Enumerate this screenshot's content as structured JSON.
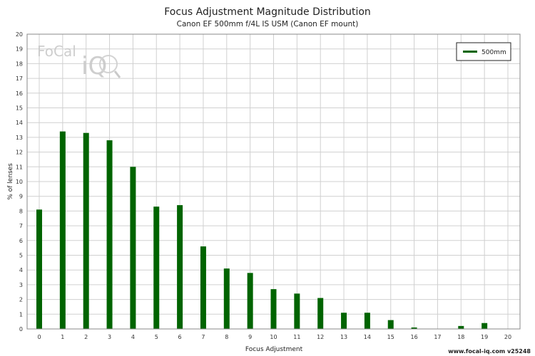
{
  "chart_data": {
    "type": "bar",
    "title": "Focus Adjustment Magnitude Distribution",
    "subtitle": "Canon EF 500mm f/4L IS USM (Canon EF mount)",
    "xlabel": "Focus Adjustment",
    "ylabel": "% of lenses",
    "xlim": [
      0,
      20
    ],
    "ylim": [
      0,
      20
    ],
    "x_ticks": [
      0,
      1,
      2,
      3,
      4,
      5,
      6,
      7,
      8,
      9,
      10,
      11,
      12,
      13,
      14,
      15,
      16,
      17,
      18,
      19,
      20
    ],
    "y_ticks": [
      0,
      1,
      2,
      3,
      4,
      5,
      6,
      7,
      8,
      9,
      10,
      11,
      12,
      13,
      14,
      15,
      16,
      17,
      18,
      19,
      20
    ],
    "grid": true,
    "legend_position": "top-right",
    "series": [
      {
        "name": "500mm",
        "color": "#006400",
        "x": [
          0,
          1,
          2,
          3,
          4,
          5,
          6,
          7,
          8,
          9,
          10,
          11,
          12,
          13,
          14,
          15,
          16,
          17,
          18,
          19,
          20
        ],
        "values": [
          8.1,
          13.4,
          13.3,
          12.8,
          11.0,
          8.3,
          8.4,
          5.6,
          4.1,
          3.8,
          2.7,
          2.4,
          2.1,
          1.1,
          1.1,
          0.6,
          0.1,
          0,
          0.2,
          0.4,
          0
        ]
      }
    ]
  },
  "footer": "www.focal-iq.com v25248",
  "watermark": {
    "text_top": "FoCal",
    "text_bottom": "iQ"
  }
}
